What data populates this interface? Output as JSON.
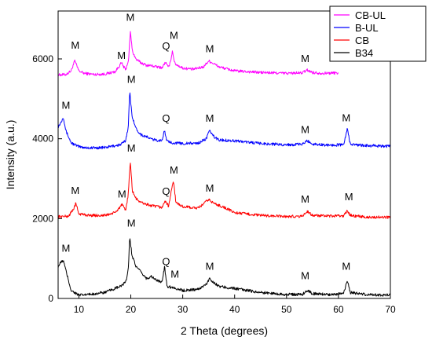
{
  "chart_data": {
    "type": "line",
    "xlabel": "2 Theta (degrees)",
    "ylabel": "Intensity (a.u.)",
    "xlim": [
      6,
      70
    ],
    "ylim": [
      0,
      7200
    ],
    "xticks": [
      10,
      20,
      30,
      40,
      50,
      60,
      70
    ],
    "yticks": [
      0,
      2000,
      4000,
      6000
    ],
    "legend_position": "top-right",
    "series": [
      {
        "name": "CB-UL",
        "color": "#ff00ff",
        "x_end": 60,
        "points": [
          [
            6,
            5600
          ],
          [
            7.5,
            5610
          ],
          [
            8.5,
            5700
          ],
          [
            9.2,
            5950
          ],
          [
            10,
            5700
          ],
          [
            11,
            5640
          ],
          [
            13,
            5610
          ],
          [
            15,
            5620
          ],
          [
            17,
            5680
          ],
          [
            18.2,
            5900
          ],
          [
            19,
            5720
          ],
          [
            19.6,
            6000
          ],
          [
            19.9,
            6700
          ],
          [
            20.3,
            6200
          ],
          [
            21,
            5990
          ],
          [
            22,
            5900
          ],
          [
            23,
            5840
          ],
          [
            24,
            5830
          ],
          [
            25,
            5800
          ],
          [
            26,
            5780
          ],
          [
            26.7,
            5920
          ],
          [
            27.2,
            5780
          ],
          [
            27.6,
            5900
          ],
          [
            28,
            6200
          ],
          [
            28.5,
            5880
          ],
          [
            30,
            5770
          ],
          [
            32,
            5740
          ],
          [
            34,
            5800
          ],
          [
            35,
            5950
          ],
          [
            36,
            5880
          ],
          [
            37,
            5800
          ],
          [
            40,
            5700
          ],
          [
            45,
            5660
          ],
          [
            50,
            5640
          ],
          [
            53,
            5650
          ],
          [
            54,
            5720
          ],
          [
            55,
            5660
          ],
          [
            57,
            5640
          ],
          [
            60,
            5650
          ]
        ]
      },
      {
        "name": "B-UL",
        "color": "#0000ff",
        "x_end": 70,
        "points": [
          [
            6,
            4300
          ],
          [
            6.5,
            4400
          ],
          [
            7,
            4550
          ],
          [
            7.5,
            4200
          ],
          [
            8.5,
            3900
          ],
          [
            10,
            3800
          ],
          [
            12,
            3770
          ],
          [
            15,
            3780
          ],
          [
            18,
            3850
          ],
          [
            19,
            3950
          ],
          [
            19.5,
            4300
          ],
          [
            19.8,
            5180
          ],
          [
            20.2,
            4600
          ],
          [
            21,
            4250
          ],
          [
            22,
            4100
          ],
          [
            23,
            4050
          ],
          [
            24,
            3990
          ],
          [
            25,
            3960
          ],
          [
            26,
            3960
          ],
          [
            26.5,
            4200
          ],
          [
            27,
            3930
          ],
          [
            28,
            3900
          ],
          [
            30,
            3880
          ],
          [
            33,
            3890
          ],
          [
            34.5,
            4000
          ],
          [
            35.2,
            4200
          ],
          [
            36,
            4050
          ],
          [
            37,
            3970
          ],
          [
            40,
            3950
          ],
          [
            45,
            3880
          ],
          [
            50,
            3850
          ],
          [
            53,
            3860
          ],
          [
            54,
            3950
          ],
          [
            55,
            3870
          ],
          [
            58,
            3840
          ],
          [
            61,
            3850
          ],
          [
            61.7,
            4250
          ],
          [
            62.3,
            3860
          ],
          [
            65,
            3830
          ],
          [
            70,
            3810
          ]
        ]
      },
      {
        "name": "CB",
        "color": "#ff0000",
        "x_end": 70,
        "points": [
          [
            6,
            2050
          ],
          [
            8,
            2060
          ],
          [
            9,
            2250
          ],
          [
            9.4,
            2380
          ],
          [
            10,
            2120
          ],
          [
            12,
            2080
          ],
          [
            15,
            2080
          ],
          [
            17,
            2150
          ],
          [
            18.3,
            2350
          ],
          [
            19,
            2200
          ],
          [
            19.5,
            2600
          ],
          [
            19.9,
            3430
          ],
          [
            20.3,
            2700
          ],
          [
            21,
            2500
          ],
          [
            22,
            2400
          ],
          [
            24,
            2320
          ],
          [
            26,
            2280
          ],
          [
            26.7,
            2450
          ],
          [
            27.3,
            2300
          ],
          [
            27.8,
            2700
          ],
          [
            28.2,
            2950
          ],
          [
            28.7,
            2400
          ],
          [
            30,
            2300
          ],
          [
            33,
            2260
          ],
          [
            35,
            2480
          ],
          [
            36,
            2380
          ],
          [
            38,
            2280
          ],
          [
            40,
            2150
          ],
          [
            45,
            2080
          ],
          [
            50,
            2050
          ],
          [
            53,
            2060
          ],
          [
            54,
            2180
          ],
          [
            55,
            2080
          ],
          [
            58,
            2060
          ],
          [
            61,
            2070
          ],
          [
            61.7,
            2200
          ],
          [
            62.3,
            2080
          ],
          [
            65,
            2040
          ],
          [
            70,
            2030
          ]
        ]
      },
      {
        "name": "B34",
        "color": "#000000",
        "x_end": 70,
        "points": [
          [
            6,
            800
          ],
          [
            6.5,
            900
          ],
          [
            7,
            950
          ],
          [
            7.5,
            700
          ],
          [
            8.5,
            200
          ],
          [
            10,
            80
          ],
          [
            12,
            100
          ],
          [
            15,
            150
          ],
          [
            18,
            300
          ],
          [
            19,
            400
          ],
          [
            19.5,
            700
          ],
          [
            19.8,
            1550
          ],
          [
            20.2,
            1100
          ],
          [
            21,
            800
          ],
          [
            22,
            650
          ],
          [
            23,
            500
          ],
          [
            24,
            550
          ],
          [
            25,
            450
          ],
          [
            26,
            400
          ],
          [
            26.5,
            800
          ],
          [
            27,
            300
          ],
          [
            28,
            280
          ],
          [
            30,
            200
          ],
          [
            33,
            230
          ],
          [
            34.5,
            350
          ],
          [
            35.2,
            500
          ],
          [
            36,
            400
          ],
          [
            37,
            300
          ],
          [
            40,
            250
          ],
          [
            45,
            150
          ],
          [
            50,
            100
          ],
          [
            53,
            100
          ],
          [
            54,
            200
          ],
          [
            55,
            120
          ],
          [
            58,
            100
          ],
          [
            61,
            120
          ],
          [
            61.7,
            450
          ],
          [
            62.3,
            150
          ],
          [
            65,
            100
          ],
          [
            70,
            80
          ]
        ]
      }
    ],
    "annotations": [
      {
        "text": "M",
        "x": 9.3,
        "y": 6260
      },
      {
        "text": "M",
        "x": 18.2,
        "y": 6000
      },
      {
        "text": "M",
        "x": 19.9,
        "y": 6950
      },
      {
        "text": "Q",
        "x": 26.8,
        "y": 6240
      },
      {
        "text": "M",
        "x": 28.3,
        "y": 6500
      },
      {
        "text": "M",
        "x": 35.2,
        "y": 6170
      },
      {
        "text": "M",
        "x": 53.6,
        "y": 5920
      },
      {
        "text": "M",
        "x": 20.1,
        "y": 5400
      },
      {
        "text": "M",
        "x": 7.5,
        "y": 4750
      },
      {
        "text": "Q",
        "x": 26.8,
        "y": 4430
      },
      {
        "text": "M",
        "x": 35.2,
        "y": 4430
      },
      {
        "text": "M",
        "x": 53.6,
        "y": 4140
      },
      {
        "text": "M",
        "x": 61.5,
        "y": 4440
      },
      {
        "text": "M",
        "x": 20.1,
        "y": 3680
      },
      {
        "text": "M",
        "x": 9.3,
        "y": 2620
      },
      {
        "text": "M",
        "x": 18.3,
        "y": 2530
      },
      {
        "text": "Q",
        "x": 26.8,
        "y": 2600
      },
      {
        "text": "M",
        "x": 28.3,
        "y": 3130
      },
      {
        "text": "M",
        "x": 35.2,
        "y": 2680
      },
      {
        "text": "M",
        "x": 53.6,
        "y": 2400
      },
      {
        "text": "M",
        "x": 62.0,
        "y": 2460
      },
      {
        "text": "M",
        "x": 20.1,
        "y": 1800
      },
      {
        "text": "M",
        "x": 7.5,
        "y": 1170
      },
      {
        "text": "Q",
        "x": 26.8,
        "y": 840
      },
      {
        "text": "M",
        "x": 28.5,
        "y": 520
      },
      {
        "text": "M",
        "x": 35.2,
        "y": 720
      },
      {
        "text": "M",
        "x": 53.6,
        "y": 480
      },
      {
        "text": "M",
        "x": 61.5,
        "y": 720
      }
    ]
  }
}
